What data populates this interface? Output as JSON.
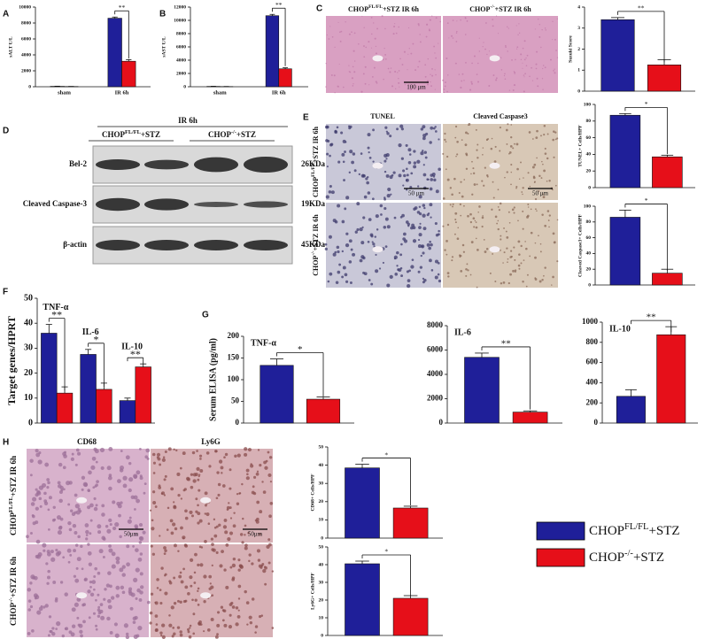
{
  "chart_data": [
    {
      "type": "bar",
      "ylabel": "sALT U/L",
      "categories": [
        "sham",
        "IR 6h"
      ],
      "ylim": [
        0,
        10000
      ],
      "yticks": [
        0,
        2000,
        4000,
        6000,
        8000,
        10000
      ],
      "series": [
        {
          "color": "#1f1f99",
          "values": [
            50,
            8600
          ],
          "errors": [
            20,
            150
          ]
        },
        {
          "color": "#e60f19",
          "values": [
            30,
            3200
          ],
          "errors": [
            10,
            200
          ]
        }
      ],
      "significance": [
        null,
        "**"
      ]
    },
    {
      "type": "bar",
      "ylabel": "sAST U/L",
      "categories": [
        "sham",
        "IR 6h"
      ],
      "ylim": [
        0,
        12000
      ],
      "yticks": [
        0,
        2000,
        4000,
        6000,
        8000,
        10000,
        12000
      ],
      "series": [
        {
          "color": "#1f1f99",
          "values": [
            50,
            10700
          ],
          "errors": [
            20,
            200
          ]
        },
        {
          "color": "#e60f19",
          "values": [
            30,
            2700
          ],
          "errors": [
            10,
            150
          ]
        }
      ],
      "significance": [
        null,
        "**"
      ]
    },
    {
      "type": "bar",
      "ylabel": "Suzuki Score",
      "categories": [
        null
      ],
      "ylim": [
        0,
        4
      ],
      "yticks": [
        0,
        1,
        2,
        3,
        4
      ],
      "series": [
        {
          "color": "#1f1f99",
          "values": [
            3.4
          ],
          "errors": [
            0.1
          ]
        },
        {
          "color": "#e60f19",
          "values": [
            1.25
          ],
          "errors": [
            0.25
          ]
        }
      ],
      "significance": [
        "**"
      ]
    },
    {
      "type": "bar",
      "ylabel": "TUNEL+ Cells/HPF",
      "categories": [
        null
      ],
      "ylim": [
        0,
        100
      ],
      "yticks": [
        0,
        20,
        40,
        60,
        80,
        100
      ],
      "series": [
        {
          "color": "#1f1f99",
          "values": [
            87
          ],
          "errors": [
            2
          ]
        },
        {
          "color": "#e60f19",
          "values": [
            37
          ],
          "errors": [
            2
          ]
        }
      ],
      "significance": [
        "*"
      ]
    },
    {
      "type": "bar",
      "ylabel": "Cleaved Caspase3+ Cells/HPF",
      "categories": [
        null
      ],
      "ylim": [
        0,
        100
      ],
      "yticks": [
        0,
        20,
        40,
        60,
        80,
        100
      ],
      "series": [
        {
          "color": "#1f1f99",
          "values": [
            86
          ],
          "errors": [
            9
          ]
        },
        {
          "color": "#e60f19",
          "values": [
            15
          ],
          "errors": [
            5
          ]
        }
      ],
      "significance": [
        "*"
      ]
    },
    {
      "type": "bar",
      "ylabel": "Target genes/HPRT",
      "categories": [
        "TNF-α",
        "IL-6",
        "IL-10"
      ],
      "ylim": [
        0,
        50
      ],
      "yticks": [
        0,
        10,
        20,
        30,
        40,
        50
      ],
      "series": [
        {
          "color": "#1f1f99",
          "values": [
            36,
            27.5,
            9
          ],
          "errors": [
            3.5,
            2,
            1
          ]
        },
        {
          "color": "#e60f19",
          "values": [
            12,
            13.5,
            22.5
          ],
          "errors": [
            2.5,
            2.5,
            1.2
          ]
        }
      ],
      "significance": [
        "**",
        "*",
        "**"
      ]
    },
    {
      "type": "bar",
      "title": "TNF-α",
      "ylabel": "Serum ELISA (pg/ml)",
      "categories": [
        null
      ],
      "ylim": [
        0,
        200
      ],
      "yticks": [
        0,
        50,
        100,
        150,
        200
      ],
      "series": [
        {
          "color": "#1f1f99",
          "values": [
            133
          ],
          "errors": [
            15
          ]
        },
        {
          "color": "#e60f19",
          "values": [
            55
          ],
          "errors": [
            5
          ]
        }
      ],
      "significance": [
        "*"
      ]
    },
    {
      "type": "bar",
      "title": "IL-6",
      "categories": [
        null
      ],
      "ylim": [
        0,
        8000
      ],
      "yticks": [
        0,
        2000,
        4000,
        6000,
        8000
      ],
      "series": [
        {
          "color": "#1f1f99",
          "values": [
            5400
          ],
          "errors": [
            350
          ]
        },
        {
          "color": "#e60f19",
          "values": [
            900
          ],
          "errors": [
            100
          ]
        }
      ],
      "significance": [
        "**"
      ]
    },
    {
      "type": "bar",
      "title": "IL-10",
      "categories": [
        null
      ],
      "ylim": [
        0,
        1000
      ],
      "yticks": [
        0,
        200,
        400,
        600,
        800,
        1000
      ],
      "series": [
        {
          "color": "#1f1f99",
          "values": [
            265
          ],
          "errors": [
            65
          ]
        },
        {
          "color": "#e60f19",
          "values": [
            875
          ],
          "errors": [
            80
          ]
        }
      ],
      "significance": [
        "**"
      ]
    },
    {
      "type": "bar",
      "ylabel": "CD68+ Cells/HPF",
      "categories": [
        null
      ],
      "ylim": [
        0,
        50
      ],
      "yticks": [
        0,
        10,
        20,
        30,
        40,
        50
      ],
      "series": [
        {
          "color": "#1f1f99",
          "values": [
            38.5
          ],
          "errors": [
            2
          ]
        },
        {
          "color": "#e60f19",
          "values": [
            16.5
          ],
          "errors": [
            1
          ]
        }
      ],
      "significance": [
        "*"
      ]
    },
    {
      "type": "bar",
      "ylabel": "Ly6G+ Cells/HPF",
      "categories": [
        null
      ],
      "ylim": [
        0,
        50
      ],
      "yticks": [
        0,
        10,
        20,
        30,
        40,
        50
      ],
      "series": [
        {
          "color": "#1f1f99",
          "values": [
            40.5
          ],
          "errors": [
            1.5
          ]
        },
        {
          "color": "#e60f19",
          "values": [
            21
          ],
          "errors": [
            1.5
          ]
        }
      ],
      "significance": [
        "*"
      ]
    }
  ],
  "panels": [
    "A",
    "B",
    "C",
    "D",
    "E",
    "F",
    "G",
    "H"
  ],
  "histology_c": {
    "columns": [
      {
        "base": "CHOP",
        "sup": "FL/FL",
        "rest": "+STZ IR 6h"
      },
      {
        "base": "CHOP",
        "sup": "-/-",
        "rest": "+STZ IR 6h"
      }
    ],
    "scale": "100 μm"
  },
  "blot": {
    "header": "IR 6h",
    "groups": [
      {
        "base": "CHOP",
        "sup": "FL/FL",
        "rest": "+STZ"
      },
      {
        "base": "CHOP",
        "sup": "-/-",
        "rest": "+STZ"
      }
    ],
    "rows": [
      {
        "name": "Bel-2",
        "size": "26KDa"
      },
      {
        "name": "Cleaved Caspase-3",
        "size": "19KDa"
      },
      {
        "name": "β-actin",
        "size": "45KDa"
      }
    ]
  },
  "histology_e": {
    "columns": [
      "TUNEL",
      "Cleaved Caspase3"
    ],
    "rows": [
      {
        "base": "CHOP",
        "sup": "FL/FL",
        "rest": "+STZ IR 6h"
      },
      {
        "base": "CHOP",
        "sup": "-/-",
        "rest": "+STZ IR 6h"
      }
    ],
    "scale": "50 μm"
  },
  "histology_h": {
    "columns": [
      "CD68",
      "Ly6G"
    ],
    "rows": [
      {
        "base": "CHOP",
        "sup": "FL/FL",
        "rest": "+STZ IR 6h"
      },
      {
        "base": "CHOP",
        "sup": "-/-",
        "rest": "+STZ IR 6h"
      }
    ],
    "scale": "50μm"
  },
  "legend": [
    {
      "base": "CHOP",
      "sup": "FL/FL",
      "rest": "+STZ",
      "color": "#1f1f99"
    },
    {
      "base": "CHOP",
      "sup": "-/-",
      "rest": "+STZ",
      "color": "#e60f19"
    }
  ]
}
